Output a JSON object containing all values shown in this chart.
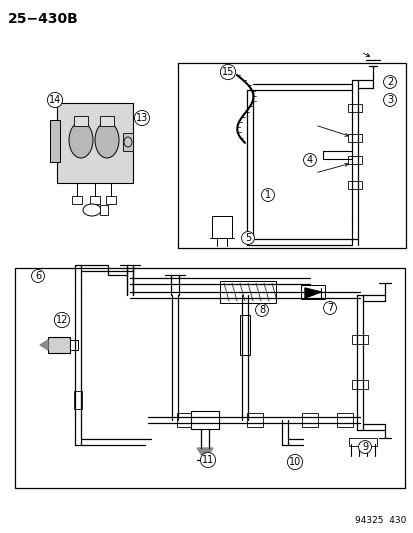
{
  "title": "25−430B",
  "footer": "94325  430",
  "bg_color": "#ffffff",
  "line_color": "#000000",
  "fig_width": 4.14,
  "fig_height": 5.33,
  "dpi": 100,
  "title_fontsize": 10,
  "label_fontsize": 7,
  "footer_fontsize": 6.5
}
